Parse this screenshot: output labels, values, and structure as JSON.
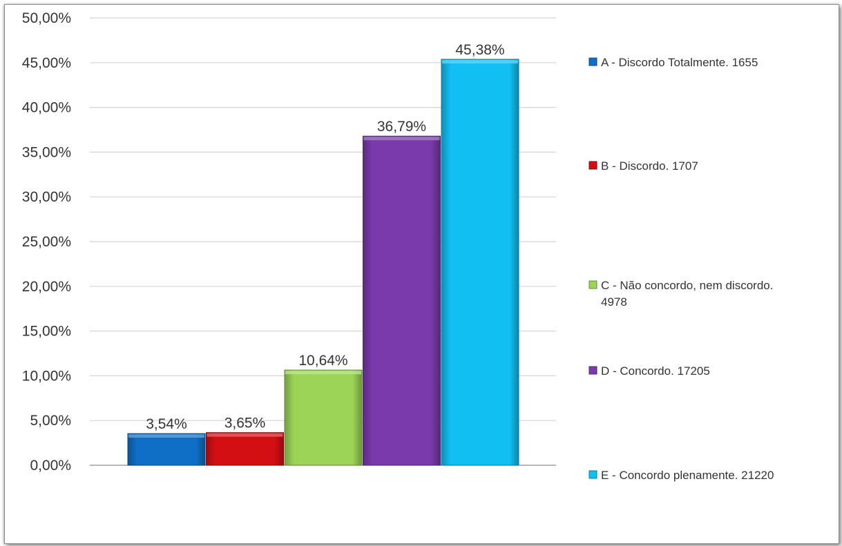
{
  "chart_data": {
    "type": "bar",
    "title": "",
    "xlabel": "",
    "ylabel": "",
    "ylim": [
      0,
      50
    ],
    "y_ticks": [
      "0,00%",
      "5,00%",
      "10,00%",
      "15,00%",
      "20,00%",
      "25,00%",
      "30,00%",
      "35,00%",
      "40,00%",
      "45,00%",
      "50,00%"
    ],
    "grid": true,
    "legend_position": "right",
    "series": [
      {
        "name": "A - Discordo Totalmente. 1655",
        "values": [
          3.54
        ],
        "label": "3,54%",
        "color": "#0F6FC6"
      },
      {
        "name": "B - Discordo. 1707",
        "values": [
          3.65
        ],
        "label": "3,65%",
        "color": "#D30F14"
      },
      {
        "name": "C - Não concordo, nem discordo. 4978",
        "values": [
          10.64
        ],
        "label": "10,64%",
        "color": "#9BD457"
      },
      {
        "name": "D - Concordo. 17205",
        "values": [
          36.79
        ],
        "label": "36,79%",
        "color": "#7B3AAB"
      },
      {
        "name": "E - Concordo plenamente. 21220",
        "values": [
          45.38
        ],
        "label": "45,38%",
        "color": "#11BFF2"
      }
    ]
  }
}
